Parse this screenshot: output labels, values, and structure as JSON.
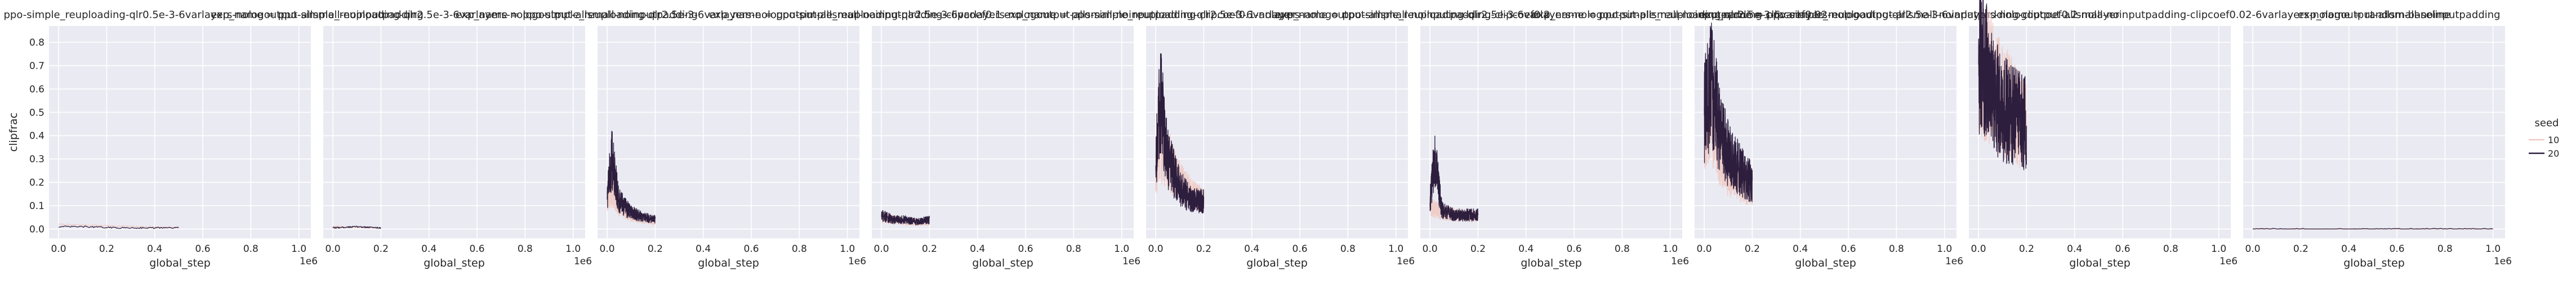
{
  "chart_data": {
    "type": "line",
    "ylabel": "clipfrac",
    "xlabel": "global_step",
    "x_offset_text": "1e6",
    "xlim": [
      -40000,
      1050000
    ],
    "ylim": [
      -0.04,
      0.87
    ],
    "x_ticks": [
      0,
      200000,
      400000,
      600000,
      800000,
      1000000
    ],
    "x_tick_labels": [
      "0.0",
      "0.2",
      "0.4",
      "0.6",
      "0.8",
      "1.0"
    ],
    "y_ticks": [
      0.0,
      0.1,
      0.2,
      0.3,
      0.4,
      0.5,
      0.6,
      0.7,
      0.8
    ],
    "y_tick_labels": [
      "0.0",
      "0.1",
      "0.2",
      "0.3",
      "0.4",
      "0.5",
      "0.6",
      "0.7",
      "0.8"
    ],
    "grid": true,
    "legend": {
      "title": "seed",
      "placement": "right",
      "entries": [
        {
          "label": "10",
          "color": "#f0c9c2"
        },
        {
          "label": "20",
          "color": "#2d1e3e"
        }
      ]
    },
    "panels": [
      {
        "title": "exp_name = ppo-simple_reuploading-qlr0.5e-3-6varlayers-nologoutput-allsmall-noinputpadding",
        "series": [
          {
            "name": "10",
            "x": [
              0,
              500000
            ],
            "y": [
              0.02,
              0.005
            ]
          },
          {
            "name": "20",
            "x": [
              0,
              100000,
              250000,
              400000,
              500000
            ],
            "y": [
              0.01,
              0.01,
              0.005,
              0.005,
              0.005
            ]
          }
        ]
      },
      {
        "title": "exp_name = ppo-simple_reuploading-qlr2.5e-3-6varlayers-nologoutput-allsmall-noinputpadding",
        "series": [
          {
            "name": "10",
            "x": [
              0,
              200000
            ],
            "y": [
              0.01,
              0.005
            ]
          },
          {
            "name": "20",
            "x": [
              0,
              100000,
              200000
            ],
            "y": [
              0.005,
              0.01,
              0.005
            ]
          }
        ]
      },
      {
        "title": "exp_name = ppo-simple_reuploading-qlr2.5e-3-6varlayers-nologoutput-allsmall-noinputpadding-clipcoef0.1",
        "series": [
          {
            "name": "10",
            "x": [
              0,
              20000,
              50000,
              100000,
              150000,
              200000
            ],
            "y": [
              0.12,
              0.17,
              0.1,
              0.06,
              0.04,
              0.03
            ]
          },
          {
            "name": "20",
            "x": [
              0,
              20000,
              50000,
              100000,
              150000,
              200000
            ],
            "y": [
              0.15,
              0.3,
              0.12,
              0.07,
              0.05,
              0.04
            ]
          }
        ]
      },
      {
        "title": "exp_name = ppo-simple_reuploading-qlr2.5e-3-6varlayers-nologoutput-allsmall-noinputpadding-clipcoef0.1-nolayer",
        "series": [
          {
            "name": "10",
            "x": [
              0,
              50000,
              100000,
              150000,
              200000
            ],
            "y": [
              0.05,
              0.04,
              0.03,
              0.03,
              0.03
            ]
          },
          {
            "name": "20",
            "x": [
              0,
              50000,
              100000,
              150000,
              200000
            ],
            "y": [
              0.06,
              0.04,
              0.04,
              0.03,
              0.04
            ]
          }
        ]
      },
      {
        "title": "exp_name = ppo-simple_reuploading-qlr2.5e-3-6varlayers-nologoutput-allsmall-noinputpadding-clipcoef0.2",
        "series": [
          {
            "name": "10",
            "x": [
              0,
              20000,
              50000,
              100000,
              150000,
              200000
            ],
            "y": [
              0.25,
              0.35,
              0.3,
              0.2,
              0.15,
              0.12
            ]
          },
          {
            "name": "20",
            "x": [
              0,
              20000,
              50000,
              100000,
              150000,
              200000
            ],
            "y": [
              0.3,
              0.55,
              0.3,
              0.18,
              0.12,
              0.12
            ]
          }
        ]
      },
      {
        "title": "exp_name = ppo-simple_reuploading-qlr2.5e-3-6varlayers-nologoutput-allsmall-noinputpadding-clipcoef0.02",
        "series": [
          {
            "name": "10",
            "x": [
              0,
              50000,
              100000,
              150000,
              200000
            ],
            "y": [
              0.1,
              0.07,
              0.06,
              0.06,
              0.05
            ]
          },
          {
            "name": "20",
            "x": [
              0,
              20000,
              50000,
              100000,
              150000,
              200000
            ],
            "y": [
              0.12,
              0.3,
              0.08,
              0.06,
              0.06,
              0.06
            ]
          }
        ]
      },
      {
        "title": "exp_name = ppo-simple_reuploading-qlr2.5e-3-6varlayers-nologoutput-allsmall-noinputpadding-clipcoef0.2-nolayer",
        "series": [
          {
            "name": "10",
            "x": [
              0,
              30000,
              60000,
              100000,
              150000,
              200000
            ],
            "y": [
              0.45,
              0.5,
              0.35,
              0.25,
              0.2,
              0.18
            ]
          },
          {
            "name": "20",
            "x": [
              0,
              30000,
              60000,
              100000,
              150000,
              200000
            ],
            "y": [
              0.5,
              0.62,
              0.45,
              0.32,
              0.25,
              0.2
            ]
          }
        ]
      },
      {
        "title": "exp_name = ppo-simple_reuploading-qlr2.5e-3-6varlayers-nologoutput-allsmall-noinputpadding-clipcoef0.02-6varlayers-nologoutput-allsmall-noinputpadding",
        "series": [
          {
            "name": "10",
            "x": [
              0,
              50000,
              100000,
              150000,
              200000
            ],
            "y": [
              0.72,
              0.65,
              0.55,
              0.5,
              0.45
            ]
          },
          {
            "name": "20",
            "x": [
              0,
              30000,
              60000,
              100000,
              150000,
              200000
            ],
            "y": [
              0.7,
              0.72,
              0.6,
              0.52,
              0.48,
              0.45
            ]
          }
        ]
      },
      {
        "title": "exp_name = random-baseline",
        "series": [
          {
            "name": "10",
            "x": [
              0,
              1000000
            ],
            "y": [
              0.0,
              0.0
            ]
          },
          {
            "name": "20",
            "x": [
              0,
              1000000
            ],
            "y": [
              0.0,
              0.0
            ]
          }
        ]
      }
    ]
  }
}
